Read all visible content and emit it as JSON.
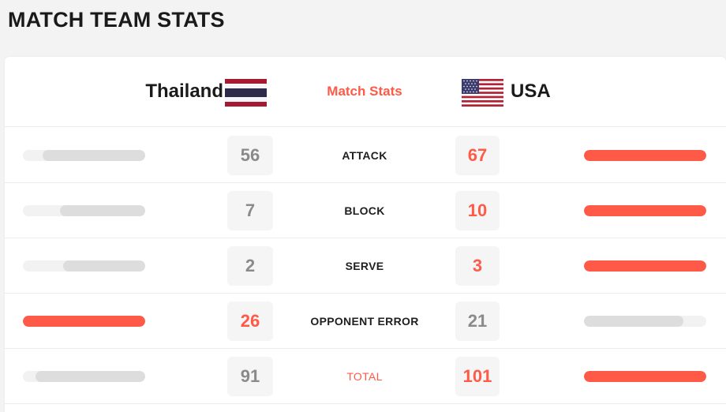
{
  "page_title": "MATCH TEAM STATS",
  "colors": {
    "accent": "#ff5a47",
    "muted_value": "#8a8a8a",
    "bar_track": "#f2f2f2",
    "bar_muted": "#dddddd"
  },
  "header": {
    "home": {
      "name": "Thailand",
      "flag_icon": "thailand-flag-icon"
    },
    "away": {
      "name": "USA",
      "flag_icon": "usa-flag-icon"
    },
    "center_label": "Match Stats"
  },
  "rows": [
    {
      "label": "ATTACK",
      "home": "56",
      "away": "67",
      "home_bar": 0.84,
      "away_bar": 1.0,
      "leader": "away"
    },
    {
      "label": "BLOCK",
      "home": "7",
      "away": "10",
      "home_bar": 0.7,
      "away_bar": 1.0,
      "leader": "away"
    },
    {
      "label": "SERVE",
      "home": "2",
      "away": "3",
      "home_bar": 0.67,
      "away_bar": 1.0,
      "leader": "away"
    },
    {
      "label": "OPPONENT ERROR",
      "home": "26",
      "away": "21",
      "home_bar": 1.0,
      "away_bar": 0.81,
      "leader": "home"
    },
    {
      "label": "TOTAL",
      "home": "91",
      "away": "101",
      "home_bar": 0.9,
      "away_bar": 1.0,
      "leader": "away",
      "label_accent": true
    }
  ]
}
